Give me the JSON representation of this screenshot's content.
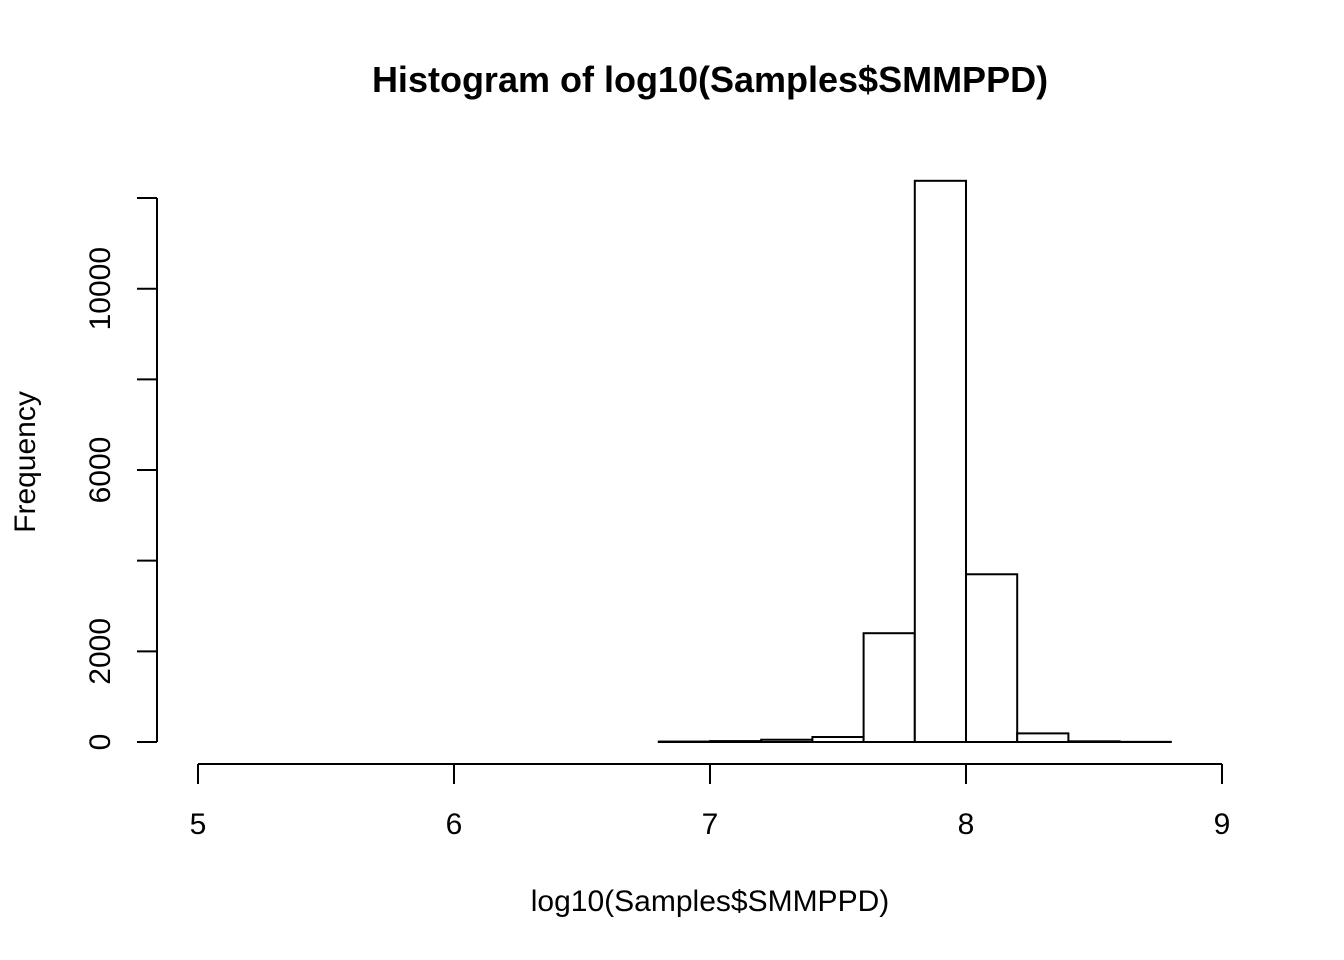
{
  "chart_data": {
    "type": "bar",
    "title": "Histogram of log10(Samples$SMMPPD)",
    "xlabel": "log10(Samples$SMMPPD)",
    "ylabel": "Frequency",
    "xlim": [
      5,
      9
    ],
    "ylim": [
      0,
      12000
    ],
    "x_ticks": [
      5,
      6,
      7,
      8,
      9
    ],
    "x_tick_labels": [
      "5",
      "6",
      "7",
      "8",
      "9"
    ],
    "y_ticks": [
      0,
      2000,
      4000,
      6000,
      8000,
      10000,
      12000
    ],
    "y_tick_labels": [
      "0",
      "2000",
      "",
      "6000",
      "",
      "10000",
      ""
    ],
    "bin_width": 0.2,
    "bins": [
      {
        "x0": 5.0,
        "x1": 5.2,
        "count": 0
      },
      {
        "x0": 5.2,
        "x1": 5.4,
        "count": 0
      },
      {
        "x0": 5.4,
        "x1": 5.6,
        "count": 0
      },
      {
        "x0": 5.6,
        "x1": 5.8,
        "count": 0
      },
      {
        "x0": 5.8,
        "x1": 6.0,
        "count": 0
      },
      {
        "x0": 6.0,
        "x1": 6.2,
        "count": 0
      },
      {
        "x0": 6.2,
        "x1": 6.4,
        "count": 0
      },
      {
        "x0": 6.4,
        "x1": 6.6,
        "count": 0
      },
      {
        "x0": 6.6,
        "x1": 6.8,
        "count": 0
      },
      {
        "x0": 6.8,
        "x1": 7.0,
        "count": 10
      },
      {
        "x0": 7.0,
        "x1": 7.2,
        "count": 20
      },
      {
        "x0": 7.2,
        "x1": 7.4,
        "count": 50
      },
      {
        "x0": 7.4,
        "x1": 7.6,
        "count": 110
      },
      {
        "x0": 7.6,
        "x1": 7.8,
        "count": 2400
      },
      {
        "x0": 7.8,
        "x1": 8.0,
        "count": 12380
      },
      {
        "x0": 8.0,
        "x1": 8.2,
        "count": 3700
      },
      {
        "x0": 8.2,
        "x1": 8.4,
        "count": 190
      },
      {
        "x0": 8.4,
        "x1": 8.6,
        "count": 15
      },
      {
        "x0": 8.6,
        "x1": 8.8,
        "count": 3
      },
      {
        "x0": 8.8,
        "x1": 9.0,
        "count": 0
      }
    ],
    "grid": false,
    "legend": "none",
    "colors": {
      "bar_fill": "#ffffff",
      "bar_stroke": "#000000",
      "axis": "#000000",
      "text": "#000000",
      "background": "#ffffff"
    }
  }
}
